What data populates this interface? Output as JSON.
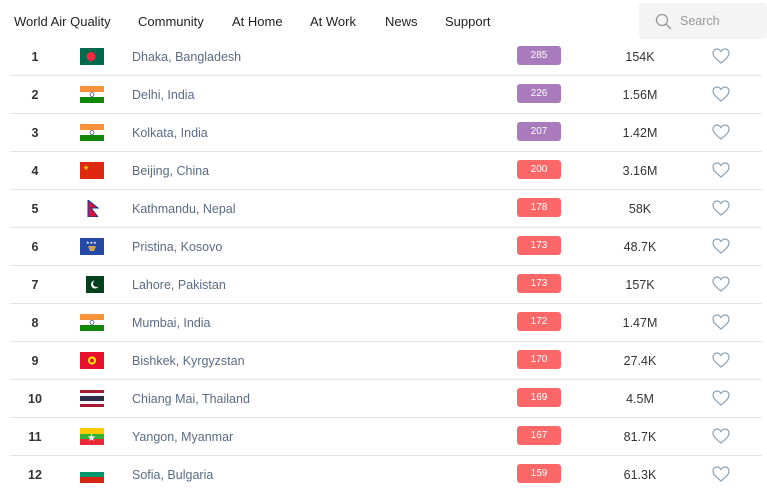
{
  "nav": {
    "items": [
      "World Air Quality",
      "Community",
      "At Home",
      "At Work",
      "News",
      "Support"
    ],
    "search_placeholder": "Search"
  },
  "colors": {
    "very_unhealthy": "#a97abc",
    "unhealthy": "#fc6868"
  },
  "rows": [
    {
      "rank": "1",
      "city": "Dhaka, Bangladesh",
      "flag": "bangladesh",
      "aqi": "285",
      "level": "very_unhealthy",
      "population": "154K"
    },
    {
      "rank": "2",
      "city": "Delhi, India",
      "flag": "india",
      "aqi": "226",
      "level": "very_unhealthy",
      "population": "1.56M"
    },
    {
      "rank": "3",
      "city": "Kolkata, India",
      "flag": "india",
      "aqi": "207",
      "level": "very_unhealthy",
      "population": "1.42M"
    },
    {
      "rank": "4",
      "city": "Beijing, China",
      "flag": "china",
      "aqi": "200",
      "level": "unhealthy",
      "population": "3.16M"
    },
    {
      "rank": "5",
      "city": "Kathmandu, Nepal",
      "flag": "nepal",
      "aqi": "178",
      "level": "unhealthy",
      "population": "58K"
    },
    {
      "rank": "6",
      "city": "Pristina, Kosovo",
      "flag": "kosovo",
      "aqi": "173",
      "level": "unhealthy",
      "population": "48.7K"
    },
    {
      "rank": "7",
      "city": "Lahore, Pakistan",
      "flag": "pakistan",
      "aqi": "173",
      "level": "unhealthy",
      "population": "157K"
    },
    {
      "rank": "8",
      "city": "Mumbai, India",
      "flag": "india",
      "aqi": "172",
      "level": "unhealthy",
      "population": "1.47M"
    },
    {
      "rank": "9",
      "city": "Bishkek, Kyrgyzstan",
      "flag": "kyrgyzstan",
      "aqi": "170",
      "level": "unhealthy",
      "population": "27.4K"
    },
    {
      "rank": "10",
      "city": "Chiang Mai, Thailand",
      "flag": "thailand",
      "aqi": "169",
      "level": "unhealthy",
      "population": "4.5M"
    },
    {
      "rank": "11",
      "city": "Yangon, Myanmar",
      "flag": "myanmar",
      "aqi": "167",
      "level": "unhealthy",
      "population": "81.7K"
    },
    {
      "rank": "12",
      "city": "Sofia, Bulgaria",
      "flag": "bulgaria",
      "aqi": "159",
      "level": "unhealthy",
      "population": "61.3K"
    }
  ]
}
